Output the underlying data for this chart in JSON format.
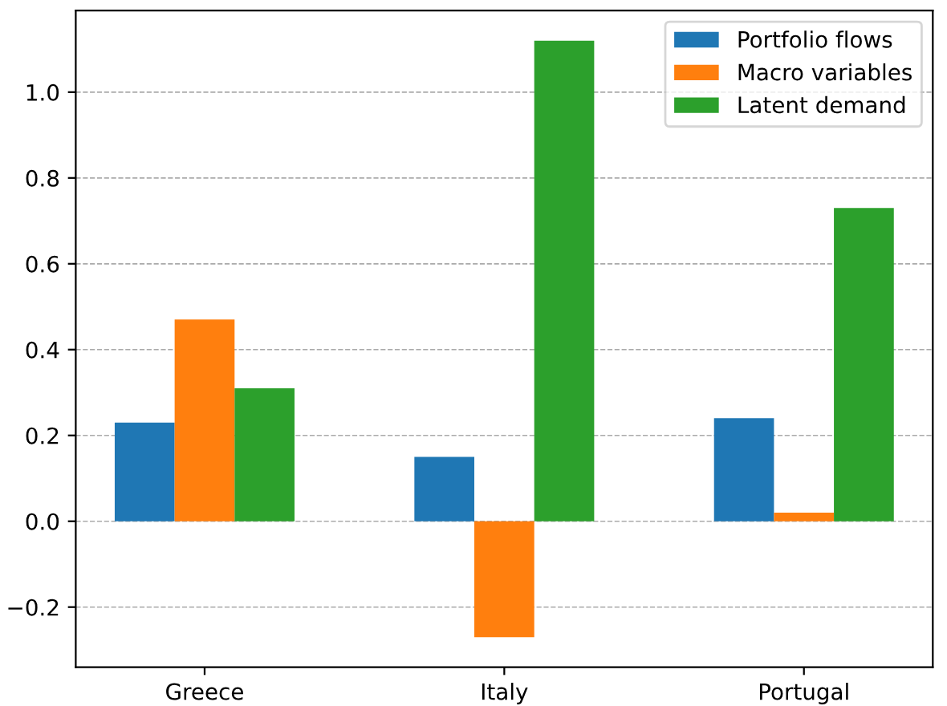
{
  "chart_data": {
    "type": "bar",
    "categories": [
      "Greece",
      "Italy",
      "Portugal"
    ],
    "series": [
      {
        "name": "Portfolio flows",
        "color": "#1f77b4",
        "values": [
          0.23,
          0.15,
          0.24
        ]
      },
      {
        "name": "Macro variables",
        "color": "#ff7f0e",
        "values": [
          0.47,
          -0.27,
          0.02
        ]
      },
      {
        "name": "Latent demand",
        "color": "#2ca02c",
        "values": [
          0.31,
          1.12,
          0.73
        ]
      }
    ],
    "ylim": [
      -0.34,
      1.19
    ],
    "yticks": [
      {
        "value": -0.2,
        "label": "−0.2"
      },
      {
        "value": 0.0,
        "label": "0.0"
      },
      {
        "value": 0.2,
        "label": "0.2"
      },
      {
        "value": 0.4,
        "label": "0.4"
      },
      {
        "value": 0.6,
        "label": "0.6"
      },
      {
        "value": 0.8,
        "label": "0.8"
      },
      {
        "value": 1.0,
        "label": "1.0"
      }
    ],
    "grid": "y",
    "line_style": "dashed",
    "legend": "top right"
  }
}
